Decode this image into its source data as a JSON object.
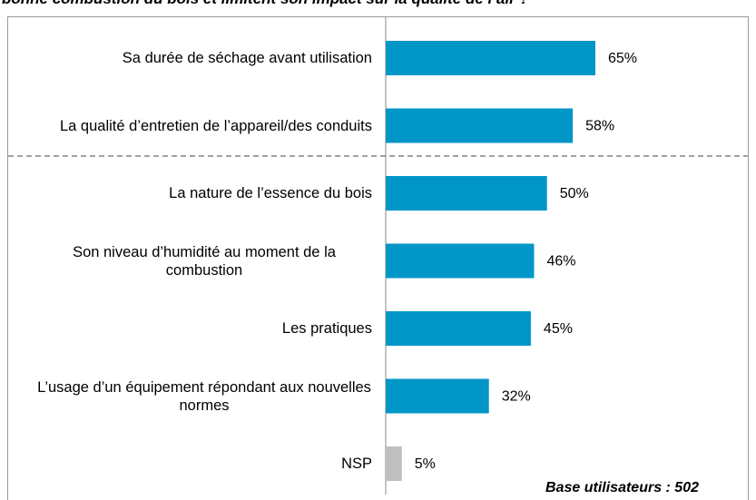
{
  "chart_data": {
    "type": "bar",
    "orientation": "horizontal",
    "title": "bonne combustion du bois et limitent son impact sur la qualité de l’air ?",
    "categories": [
      "Sa durée de séchage avant utilisation",
      "La qualité d’entretien de l’appareil/des conduits",
      "La nature de l’essence du bois",
      "Son niveau d’humidité au moment de la combustion",
      "Les pratiques",
      "L’usage d’un équipement répondant aux nouvelles normes",
      "NSP"
    ],
    "values": [
      65,
      58,
      50,
      46,
      45,
      32,
      5
    ],
    "value_labels": [
      "65%",
      "58%",
      "50%",
      "46%",
      "45%",
      "32%",
      "5%"
    ],
    "colors": [
      "#0096c8",
      "#0096c8",
      "#0096c8",
      "#0096c8",
      "#0096c8",
      "#0096c8",
      "#bfbfbf"
    ],
    "annotation": "Base utilisateurs : 502"
  }
}
